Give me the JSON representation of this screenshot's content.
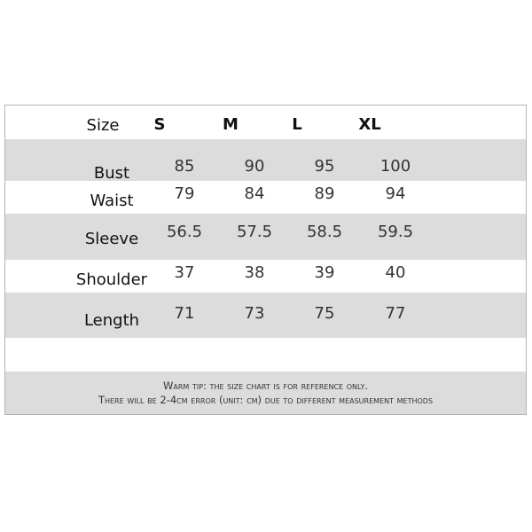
{
  "header": {
    "label": "Size",
    "sizes": [
      "S",
      "M",
      "L",
      "XL"
    ]
  },
  "rows": [
    {
      "label": "Bust",
      "values": [
        "85",
        "90",
        "95",
        "100"
      ]
    },
    {
      "label": "Waist",
      "values": [
        "79",
        "84",
        "89",
        "94"
      ]
    },
    {
      "label": "Sleeve",
      "values": [
        "56.5",
        "57.5",
        "58.5",
        "59.5"
      ]
    },
    {
      "label": "Shoulder",
      "values": [
        "37",
        "38",
        "39",
        "40"
      ]
    },
    {
      "label": "Length",
      "values": [
        "71",
        "73",
        "75",
        "77"
      ]
    }
  ],
  "note": {
    "line1": "Warm tip: the size chart is for reference only.",
    "line2": "There will be 2-4cm error (unit: cm) due to different measurement methods"
  },
  "colors": {
    "stripe": "#dcdcdc",
    "border": "#b5b5b5"
  }
}
